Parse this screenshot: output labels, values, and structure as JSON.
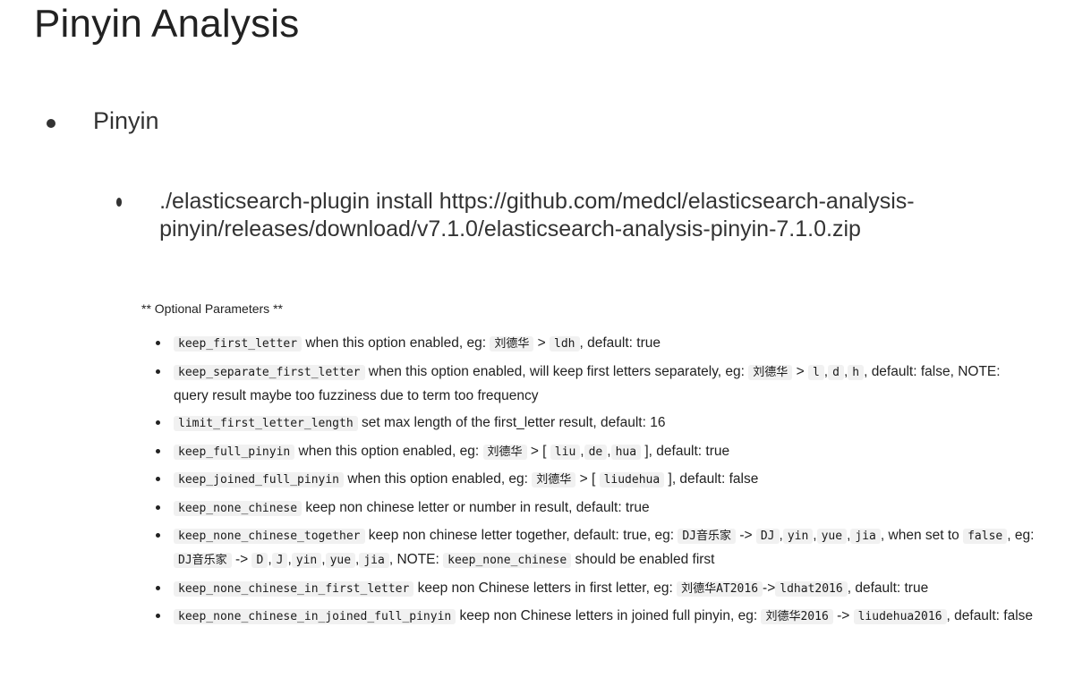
{
  "title": "Pinyin Analysis",
  "bullet_level1": "Pinyin",
  "bullet_level2": "./elasticsearch-plugin install https://github.com/medcl/elasticsearch-analysis-pinyin/releases/download/v7.1.0/elasticsearch-analysis-pinyin-7.1.0.zip",
  "optional_header": "** Optional Parameters **",
  "params": [
    {
      "name": "keep_first_letter",
      "parts": [
        {
          "t": " when this option enabled, eg: "
        },
        {
          "c": "刘德华"
        },
        {
          "t": " > "
        },
        {
          "c": "ldh"
        },
        {
          "t": ", default: true"
        }
      ]
    },
    {
      "name": "keep_separate_first_letter",
      "parts": [
        {
          "t": " when this option enabled, will keep first letters separately, eg: "
        },
        {
          "c": "刘德华"
        },
        {
          "t": " > "
        },
        {
          "c": "l"
        },
        {
          "t": ","
        },
        {
          "c": "d"
        },
        {
          "t": ","
        },
        {
          "c": "h"
        },
        {
          "t": ", default: false, NOTE: query result maybe too fuzziness due to term too frequency"
        }
      ]
    },
    {
      "name": "limit_first_letter_length",
      "parts": [
        {
          "t": " set max length of the first_letter result, default: 16"
        }
      ]
    },
    {
      "name": "keep_full_pinyin",
      "parts": [
        {
          "t": " when this option enabled, eg: "
        },
        {
          "c": "刘德华"
        },
        {
          "t": " > [ "
        },
        {
          "c": "liu"
        },
        {
          "t": ","
        },
        {
          "c": "de"
        },
        {
          "t": ","
        },
        {
          "c": "hua"
        },
        {
          "t": " ], default: true"
        }
      ]
    },
    {
      "name": "keep_joined_full_pinyin",
      "parts": [
        {
          "t": " when this option enabled, eg: "
        },
        {
          "c": "刘德华"
        },
        {
          "t": " > [ "
        },
        {
          "c": "liudehua"
        },
        {
          "t": " ], default: false"
        }
      ]
    },
    {
      "name": "keep_none_chinese",
      "parts": [
        {
          "t": " keep non chinese letter or number in result, default: true"
        }
      ]
    },
    {
      "name": "keep_none_chinese_together",
      "parts": [
        {
          "t": " keep non chinese letter together, default: true, eg: "
        },
        {
          "c": "DJ音乐家"
        },
        {
          "t": " -> "
        },
        {
          "c": "DJ"
        },
        {
          "t": ","
        },
        {
          "c": "yin"
        },
        {
          "t": ","
        },
        {
          "c": "yue"
        },
        {
          "t": ","
        },
        {
          "c": "jia"
        },
        {
          "t": ", when set to "
        },
        {
          "c": "false"
        },
        {
          "t": ", eg: "
        },
        {
          "c": "DJ音乐家"
        },
        {
          "t": " -> "
        },
        {
          "c": "D"
        },
        {
          "t": ","
        },
        {
          "c": "J"
        },
        {
          "t": ","
        },
        {
          "c": "yin"
        },
        {
          "t": ","
        },
        {
          "c": "yue"
        },
        {
          "t": ","
        },
        {
          "c": "jia"
        },
        {
          "t": ", NOTE: "
        },
        {
          "c": "keep_none_chinese"
        },
        {
          "t": " should be enabled first"
        }
      ]
    },
    {
      "name": "keep_none_chinese_in_first_letter",
      "parts": [
        {
          "t": " keep non Chinese letters in first letter, eg: "
        },
        {
          "c": "刘德华AT2016"
        },
        {
          "t": "->"
        },
        {
          "c": "ldhat2016"
        },
        {
          "t": ", default: true"
        }
      ]
    },
    {
      "name": "keep_none_chinese_in_joined_full_pinyin",
      "parts": [
        {
          "t": " keep non Chinese letters in joined full pinyin, eg: "
        },
        {
          "c": "刘德华2016"
        },
        {
          "t": " -> "
        },
        {
          "c": "liudehua2016"
        },
        {
          "t": ", default: false"
        }
      ]
    }
  ]
}
